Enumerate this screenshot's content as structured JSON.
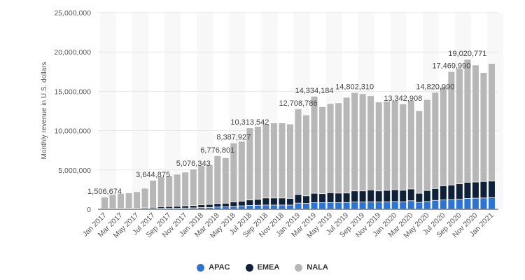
{
  "chart_data": {
    "type": "bar",
    "stacked": true,
    "ylabel": "Monthly revenue in U.S. dollars",
    "xlabel": "",
    "ylim": [
      0,
      25000000
    ],
    "yticks": [
      "0",
      "5,000,000",
      "10,000,000",
      "15,000,000",
      "20,000,000",
      "25,000,000"
    ],
    "grid": true,
    "legend_position": "bottom",
    "categories": [
      "Jan 2017",
      "Feb 2017",
      "Mar 2017",
      "Apr 2017",
      "May 2017",
      "Jun 2017",
      "Jul 2017",
      "Aug 2017",
      "Sep 2017",
      "Oct 2017",
      "Nov 2017",
      "Dec 2017",
      "Jan 2018",
      "Feb 2018",
      "Mar 2018",
      "Apr 2018",
      "May 2018",
      "Jun 2018",
      "Jul 2018",
      "Aug 2018",
      "Sep 2018",
      "Oct 2018",
      "Nov 2018",
      "Dec 2018",
      "Jan 2019",
      "Feb 2019",
      "Mar 2019",
      "Apr 2019",
      "May 2019",
      "Jun 2019",
      "Jul 2019",
      "Aug 2019",
      "Sep 2019",
      "Oct 2019",
      "Nov 2019",
      "Dec 2019",
      "Jan 2020",
      "Feb 2020",
      "Mar 2020",
      "Apr 2020",
      "May 2020",
      "Jun 2020",
      "Jul 2020",
      "Aug 2020",
      "Sep 2020",
      "Oct 2020",
      "Nov 2020",
      "Dec 2020",
      "Jan 2021"
    ],
    "series": [
      {
        "name": "APAC",
        "color": "#2b74d6",
        "values": [
          20000,
          20000,
          30000,
          30000,
          30000,
          40000,
          60000,
          80000,
          90000,
          100000,
          120000,
          140000,
          180000,
          200000,
          250000,
          270000,
          350000,
          400000,
          450000,
          480000,
          500000,
          500000,
          500000,
          500000,
          750000,
          720000,
          800000,
          800000,
          820000,
          820000,
          830000,
          900000,
          900000,
          920000,
          900000,
          920000,
          950000,
          930000,
          1050000,
          850000,
          950000,
          1100000,
          1150000,
          1200000,
          1250000,
          1350000,
          1380000,
          1400000,
          1450000
        ]
      },
      {
        "name": "EMEA",
        "color": "#0e2139",
        "values": [
          30000,
          40000,
          50000,
          50000,
          60000,
          100000,
          150000,
          200000,
          220000,
          250000,
          280000,
          300000,
          350000,
          380000,
          450000,
          470000,
          550000,
          600000,
          700000,
          750000,
          900000,
          900000,
          900000,
          850000,
          1100000,
          950000,
          1200000,
          1150000,
          1250000,
          1200000,
          1200000,
          1400000,
          1400000,
          1500000,
          1400000,
          1450000,
          1500000,
          1450000,
          1500000,
          1150000,
          1400000,
          1500000,
          1800000,
          1850000,
          1950000,
          2050000,
          2050000,
          2100000,
          2100000
        ]
      },
      {
        "name": "NALA",
        "color": "#b7b7b7",
        "values": [
          1456674,
          1780000,
          1900000,
          1960000,
          2110000,
          2500000,
          3434875,
          3840000,
          3900000,
          4070000,
          4290000,
          4636343,
          5010000,
          5050000,
          6076801,
          5780000,
          7487927,
          7600000,
          9163542,
          9270000,
          9400000,
          9540000,
          9540000,
          9450000,
          10858786,
          10280000,
          12334184,
          11050000,
          11330000,
          11480000,
          12170000,
          12502310,
          12350000,
          11980000,
          11300000,
          11330000,
          11350000,
          10962908,
          11250000,
          10500000,
          11550000,
          12220990,
          12550000,
          14419990,
          14660000,
          15620771,
          14870000,
          13850000,
          14950000
        ]
      }
    ],
    "data_labels": [
      {
        "index": 0,
        "text": "1,506,674"
      },
      {
        "index": 6,
        "text": "3,644,875"
      },
      {
        "index": 11,
        "text": "5,076,343"
      },
      {
        "index": 14,
        "text": "6,776,801"
      },
      {
        "index": 16,
        "text": "8,387,927"
      },
      {
        "index": 18,
        "text": "10,313,542"
      },
      {
        "index": 24,
        "text": "12,708,786"
      },
      {
        "index": 26,
        "text": "14,334,184"
      },
      {
        "index": 31,
        "text": "14,802,310"
      },
      {
        "index": 37,
        "text": "13,342,908"
      },
      {
        "index": 41,
        "text": "14,820,990"
      },
      {
        "index": 43,
        "text": "17,469,990"
      },
      {
        "index": 45,
        "text": "19,020,771"
      }
    ]
  },
  "legend": {
    "items": [
      {
        "label": "APAC",
        "color": "#2b74d6"
      },
      {
        "label": "EMEA",
        "color": "#0e2139"
      },
      {
        "label": "NALA",
        "color": "#b7b7b7"
      }
    ]
  }
}
